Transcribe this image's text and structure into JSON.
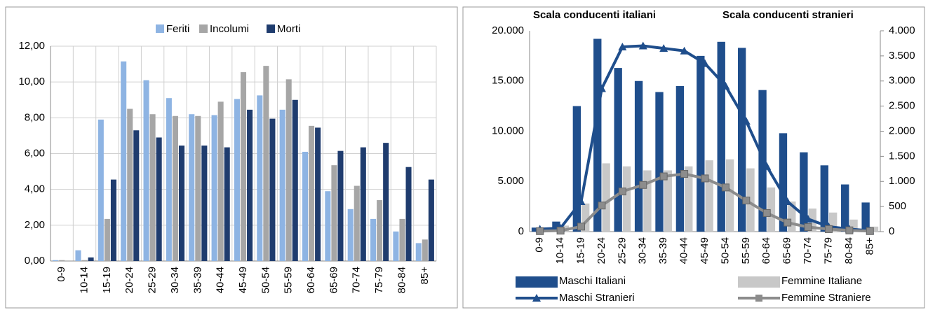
{
  "chart_data": [
    {
      "type": "bar",
      "legend": "top",
      "categories": [
        "0-9",
        "10-14",
        "15-19",
        "20-24",
        "25-29",
        "30-34",
        "35-39",
        "40-44",
        "45-49",
        "50-54",
        "55-59",
        "60-64",
        "65-69",
        "70-74",
        "75-79",
        "80-84",
        "85+"
      ],
      "series": [
        {
          "name": "Feriti",
          "color": "#8eb4e3",
          "values": [
            0.05,
            0.6,
            7.9,
            11.15,
            10.1,
            9.1,
            8.2,
            8.15,
            9.05,
            9.25,
            8.45,
            6.1,
            3.9,
            2.9,
            2.35,
            1.65,
            1.0
          ]
        },
        {
          "name": "Incolumi",
          "color": "#a6a6a6",
          "values": [
            0.05,
            0.05,
            2.35,
            8.5,
            8.2,
            8.1,
            8.1,
            8.9,
            10.55,
            10.9,
            10.15,
            7.55,
            5.35,
            4.2,
            3.4,
            2.35,
            1.2
          ]
        },
        {
          "name": "Morti",
          "color": "#1f3c6e",
          "values": [
            0,
            0.2,
            4.55,
            7.3,
            6.9,
            6.45,
            6.45,
            6.35,
            8.45,
            7.95,
            9.0,
            7.45,
            6.15,
            6.35,
            6.6,
            5.25,
            4.55
          ]
        }
      ],
      "ylim": [
        0,
        12
      ],
      "yticks": [
        {
          "value": 0,
          "label": "0,00"
        },
        {
          "value": 2,
          "label": "2,00"
        },
        {
          "value": 4,
          "label": "4,00"
        },
        {
          "value": 6,
          "label": "6,00"
        },
        {
          "value": 8,
          "label": "8,00"
        },
        {
          "value": 10,
          "label": "10,00"
        },
        {
          "value": 12,
          "label": "12,00"
        }
      ],
      "grid": true
    },
    {
      "type": "bar+line",
      "legend": "bottom",
      "annotations": [
        "Scala conducenti italiani",
        "Scala conducenti stranieri"
      ],
      "categories": [
        "0-9",
        "10-14",
        "15-19",
        "20-24",
        "25-29",
        "30-34",
        "35-39",
        "40-44",
        "45-49",
        "50-54",
        "55-59",
        "60-64",
        "65-69",
        "70-74",
        "75-79",
        "80-84",
        "85+"
      ],
      "series": [
        {
          "name": "Maschi Italiani",
          "color": "#1f4e8c",
          "kind": "bar",
          "values": [
            400,
            1000,
            12500,
            19200,
            16300,
            15000,
            13900,
            14500,
            17500,
            18900,
            18300,
            14100,
            9800,
            7900,
            6600,
            4700,
            2900
          ]
        },
        {
          "name": "Femmine Italiane",
          "color": "#c8c8c8",
          "kind": "bar",
          "values": [
            300,
            600,
            2800,
            6800,
            6500,
            6100,
            6100,
            6500,
            7100,
            7200,
            6300,
            4400,
            3000,
            2300,
            1900,
            1200,
            500
          ]
        },
        {
          "name": "Maschi Stranieri",
          "color": "#1f4e8c",
          "kind": "line",
          "marker": "triangle",
          "axis": "y2",
          "values": [
            50,
            70,
            600,
            2850,
            3680,
            3700,
            3650,
            3600,
            3350,
            2900,
            2200,
            1300,
            600,
            250,
            100,
            50,
            20
          ]
        },
        {
          "name": "Femmine Straniere",
          "color": "#8c8c8c",
          "kind": "line",
          "marker": "square",
          "axis": "y2",
          "values": [
            10,
            20,
            100,
            520,
            800,
            930,
            1100,
            1150,
            1060,
            880,
            620,
            370,
            180,
            90,
            50,
            25,
            10
          ]
        }
      ],
      "ylim": [
        0,
        20000
      ],
      "yticks": [
        0,
        {
          "value": 5000,
          "label": "5.000"
        },
        {
          "value": 10000,
          "label": "10.000"
        },
        {
          "value": 15000,
          "label": "15.000"
        },
        {
          "value": 20000,
          "label": "20.000"
        }
      ],
      "y2lim": [
        0,
        4000
      ],
      "y2ticks": [
        0,
        500,
        {
          "value": 1000,
          "label": "1.000"
        },
        {
          "value": 1500,
          "label": "1.500"
        },
        {
          "value": 2000,
          "label": "2.000"
        },
        {
          "value": 2500,
          "label": "2.500"
        },
        {
          "value": 3000,
          "label": "3.000"
        },
        {
          "value": 3500,
          "label": "3.500"
        },
        {
          "value": 4000,
          "label": "4.000"
        }
      ],
      "grid": false
    }
  ]
}
